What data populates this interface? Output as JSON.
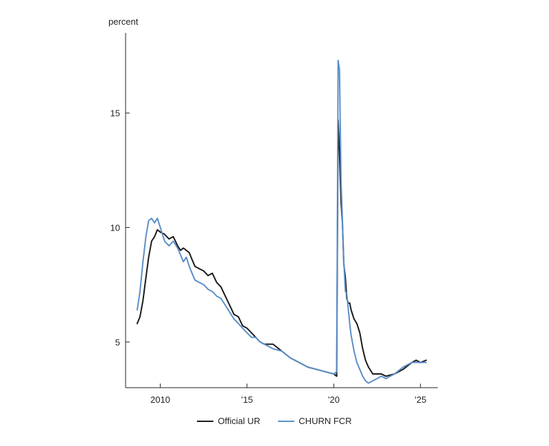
{
  "chart_data": {
    "type": "line",
    "title": "",
    "unit_label": "percent",
    "xlabel": "",
    "ylabel": "",
    "xlim": [
      2008.0,
      2026.0
    ],
    "ylim": [
      3.0,
      18.5
    ],
    "x_ticks": [
      {
        "value": 2010,
        "label": "2010"
      },
      {
        "value": 2015,
        "label": "’15"
      },
      {
        "value": 2020,
        "label": "’20"
      },
      {
        "value": 2025,
        "label": "’25"
      }
    ],
    "y_ticks": [
      {
        "value": 5,
        "label": "5"
      },
      {
        "value": 10,
        "label": "10"
      },
      {
        "value": 15,
        "label": "15"
      }
    ],
    "grid": false,
    "legend_position": "bottom-center",
    "series": [
      {
        "name": "Official UR",
        "color": "#1a1a1a",
        "x": [
          2008.67,
          2008.83,
          2009.0,
          2009.17,
          2009.33,
          2009.5,
          2009.67,
          2009.83,
          2010.0,
          2010.25,
          2010.5,
          2010.75,
          2011.0,
          2011.17,
          2011.33,
          2011.5,
          2011.67,
          2011.83,
          2012.0,
          2012.25,
          2012.5,
          2012.75,
          2013.0,
          2013.25,
          2013.5,
          2013.75,
          2014.0,
          2014.25,
          2014.5,
          2014.75,
          2015.0,
          2015.25,
          2015.5,
          2015.75,
          2016.0,
          2016.5,
          2017.0,
          2017.5,
          2018.0,
          2018.5,
          2019.0,
          2019.5,
          2020.0,
          2020.17,
          2020.25,
          2020.33,
          2020.42,
          2020.5,
          2020.58,
          2020.67,
          2020.75,
          2020.83,
          2020.92,
          2021.0,
          2021.17,
          2021.33,
          2021.5,
          2021.67,
          2021.83,
          2022.0,
          2022.25,
          2022.5,
          2022.75,
          2023.0,
          2023.5,
          2024.0,
          2024.5,
          2024.75,
          2025.0,
          2025.33
        ],
        "values": [
          5.8,
          6.1,
          6.8,
          7.8,
          8.7,
          9.4,
          9.6,
          9.9,
          9.8,
          9.7,
          9.5,
          9.6,
          9.2,
          9.0,
          9.1,
          9.0,
          8.9,
          8.6,
          8.3,
          8.2,
          8.1,
          7.9,
          8.0,
          7.6,
          7.4,
          7.0,
          6.6,
          6.2,
          6.1,
          5.7,
          5.6,
          5.4,
          5.2,
          5.0,
          4.9,
          4.9,
          4.6,
          4.3,
          4.1,
          3.9,
          3.8,
          3.7,
          3.6,
          3.5,
          14.7,
          13.3,
          11.1,
          10.2,
          8.4,
          7.8,
          6.9,
          6.7,
          6.7,
          6.4,
          6.0,
          5.8,
          5.4,
          4.7,
          4.2,
          3.9,
          3.6,
          3.6,
          3.6,
          3.5,
          3.6,
          3.8,
          4.1,
          4.2,
          4.1,
          4.2
        ]
      },
      {
        "name": "CHURN FCR",
        "color": "#5b8ec9",
        "x": [
          2008.67,
          2008.83,
          2009.0,
          2009.17,
          2009.33,
          2009.5,
          2009.67,
          2009.83,
          2010.0,
          2010.25,
          2010.5,
          2010.75,
          2011.0,
          2011.17,
          2011.33,
          2011.5,
          2011.67,
          2011.83,
          2012.0,
          2012.25,
          2012.5,
          2012.75,
          2013.0,
          2013.25,
          2013.5,
          2013.75,
          2014.0,
          2014.25,
          2014.5,
          2014.75,
          2015.0,
          2015.25,
          2015.5,
          2015.75,
          2016.0,
          2016.5,
          2017.0,
          2017.5,
          2018.0,
          2018.5,
          2019.0,
          2019.5,
          2020.0,
          2020.17,
          2020.25,
          2020.33,
          2020.42,
          2020.5,
          2020.58,
          2020.67,
          2020.75,
          2020.83,
          2020.92,
          2021.0,
          2021.17,
          2021.33,
          2021.5,
          2021.67,
          2021.83,
          2022.0,
          2022.25,
          2022.5,
          2022.75,
          2023.0,
          2023.5,
          2024.0,
          2024.5,
          2024.75,
          2025.0,
          2025.33
        ],
        "values": [
          6.4,
          7.2,
          8.5,
          9.6,
          10.3,
          10.4,
          10.2,
          10.4,
          10.0,
          9.4,
          9.2,
          9.4,
          9.1,
          8.8,
          8.5,
          8.7,
          8.3,
          8.0,
          7.7,
          7.6,
          7.5,
          7.3,
          7.2,
          7.0,
          6.9,
          6.6,
          6.3,
          6.0,
          5.8,
          5.6,
          5.4,
          5.2,
          5.2,
          5.0,
          4.9,
          4.7,
          4.6,
          4.3,
          4.1,
          3.9,
          3.8,
          3.7,
          3.6,
          3.7,
          17.3,
          16.9,
          12.0,
          10.3,
          8.5,
          7.2,
          7.1,
          6.5,
          5.8,
          5.3,
          4.6,
          4.1,
          3.8,
          3.5,
          3.3,
          3.2,
          3.3,
          3.4,
          3.5,
          3.4,
          3.6,
          3.9,
          4.1,
          4.1,
          4.1,
          4.1
        ]
      }
    ]
  }
}
